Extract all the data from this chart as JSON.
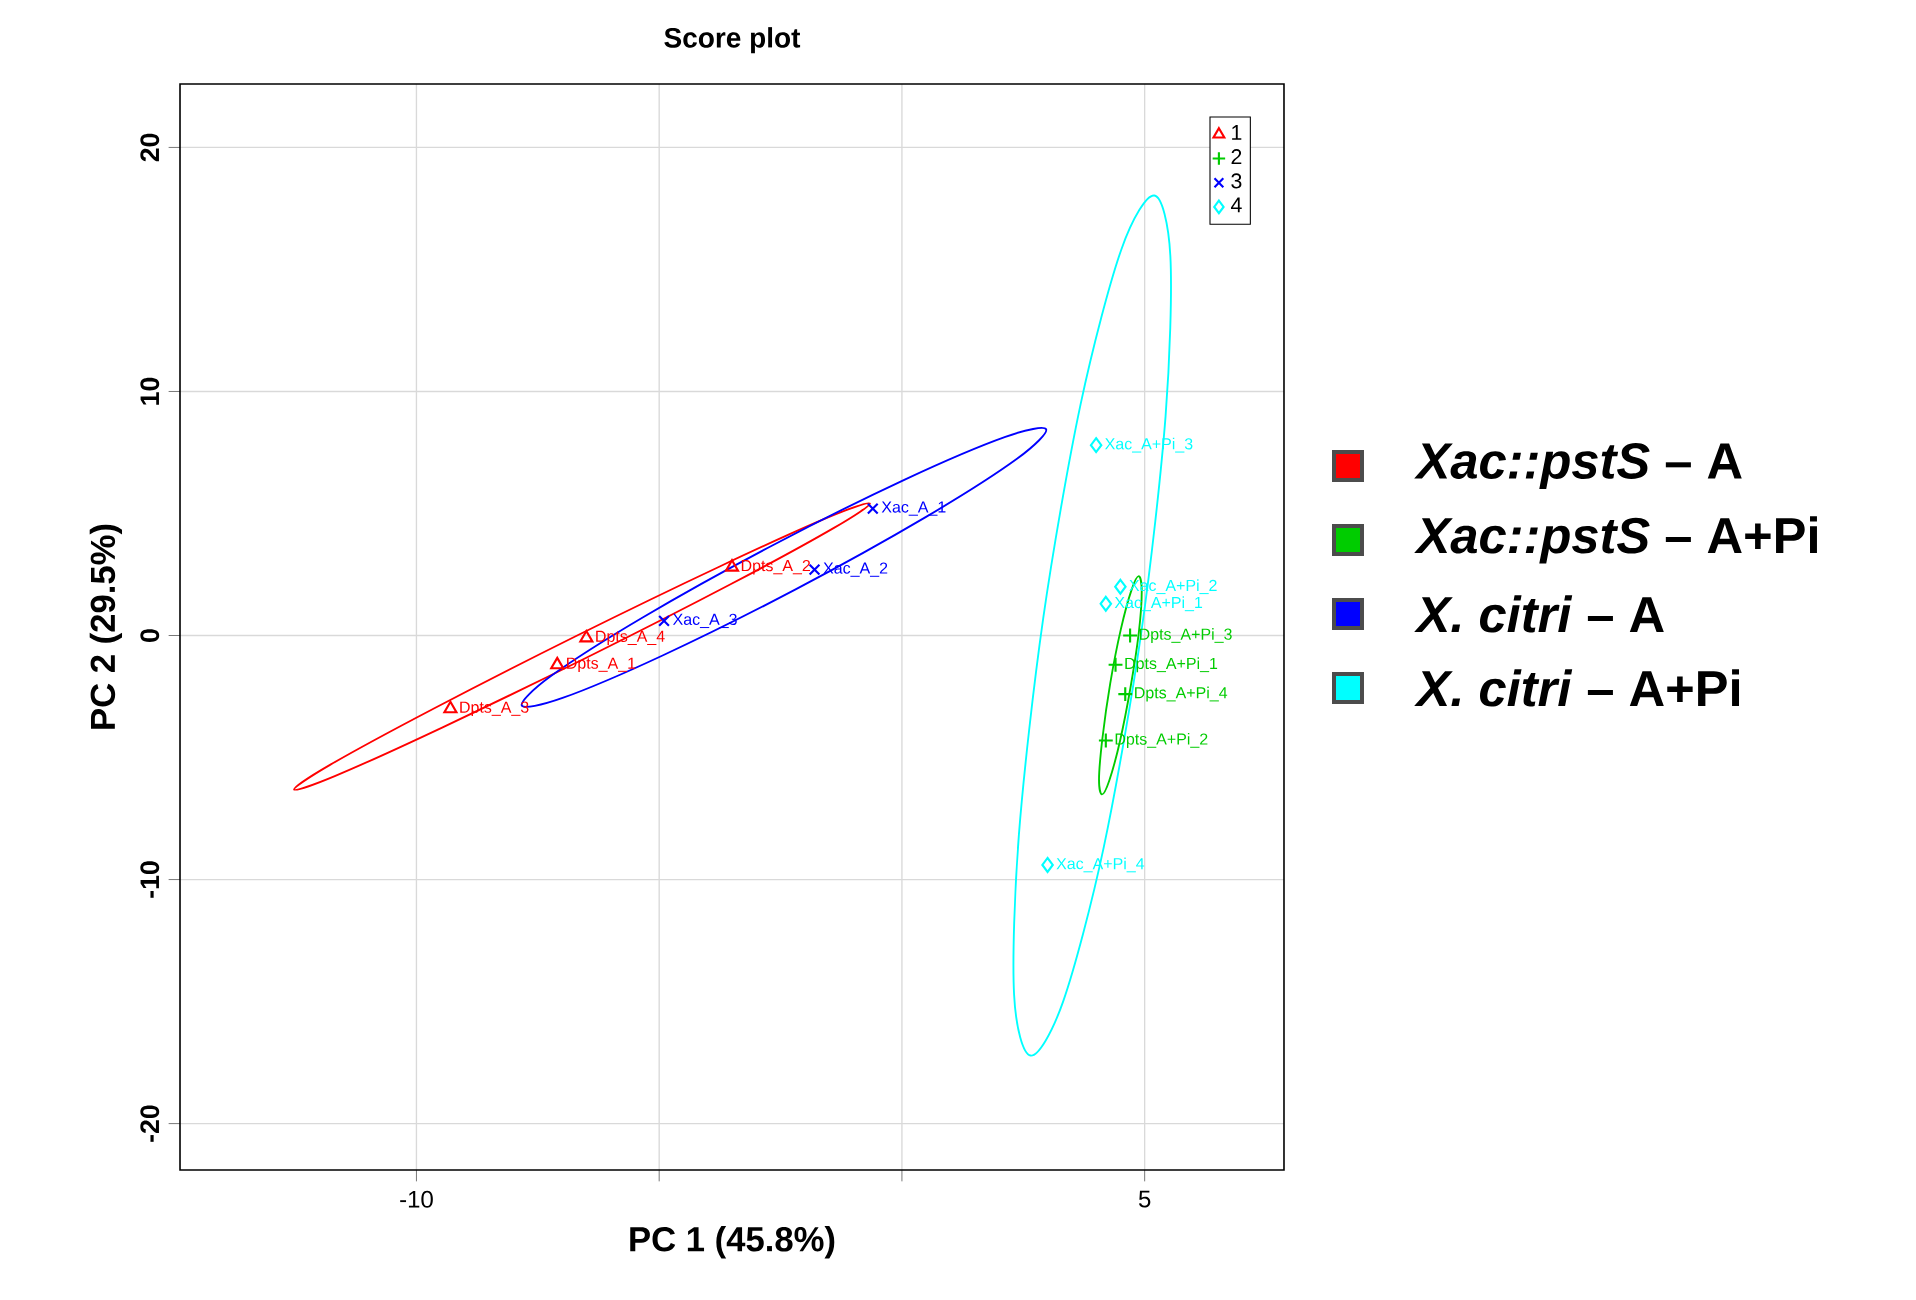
{
  "chart_data": {
    "type": "scatter",
    "title": "Score plot",
    "xlabel": "PC 1 (45.8%)",
    "ylabel": "PC 2 (29.5%)",
    "xlim": [
      -14.87,
      7.87
    ],
    "ylim": [
      -21.9,
      22.6
    ],
    "xticks": [
      -10,
      {
        "value": -5,
        "label": null
      },
      {
        "value": 0,
        "label": null
      },
      5
    ],
    "yticks": [
      -20,
      -10,
      0,
      10,
      20
    ],
    "grid": true,
    "legend": "top right",
    "series": [
      {
        "name": "1",
        "type": "scatter",
        "marker": "triangle",
        "color": "#ff0000",
        "x": [
          -9.3,
          -7.1,
          -6.5,
          -3.5
        ],
        "values": [
          -3.0,
          -1.2,
          -0.1,
          2.8
        ]
      },
      {
        "name": "2",
        "type": "scatter",
        "marker": "plus",
        "color": "#00cc00",
        "x": [
          4.4,
          4.2,
          4.7,
          4.6
        ],
        "values": [
          -1.2,
          -4.3,
          0.0,
          -2.4
        ]
      },
      {
        "name": "3",
        "type": "scatter",
        "marker": "cross",
        "color": "#0000ff",
        "x": [
          -0.6,
          -1.8,
          -4.9
        ],
        "values": [
          5.2,
          2.7,
          0.6
        ]
      },
      {
        "name": "4",
        "type": "scatter",
        "marker": "diamond",
        "color": "#00ffff",
        "x": [
          4.2,
          4.5,
          4.0,
          3.0
        ],
        "values": [
          1.3,
          2.0,
          7.8,
          -9.4
        ]
      }
    ],
    "annotations": [
      {
        "text": "Dpts_A_1",
        "x": -7.1,
        "y": -1.2
      },
      {
        "text": "Dpts_A_2",
        "x": -3.5,
        "y": 2.8
      },
      {
        "text": "Dpts_A_3",
        "x": -9.3,
        "y": -3.0
      },
      {
        "text": "Dpts_A_4",
        "x": -6.5,
        "y": -0.1
      },
      {
        "text": "Dpts_A+Pi_1",
        "x": 4.4,
        "y": -1.2
      },
      {
        "text": "Dpts_A+Pi_2",
        "x": 4.2,
        "y": -4.3
      },
      {
        "text": "Dpts_A+Pi_3",
        "x": 4.7,
        "y": 0.0
      },
      {
        "text": "Dpts_A+Pi_4",
        "x": 4.6,
        "y": -2.4
      },
      {
        "text": "Xac_A_1",
        "x": -0.6,
        "y": 5.2
      },
      {
        "text": "Xac_A_2",
        "x": -1.8,
        "y": 2.7
      },
      {
        "text": "Xac_A_3",
        "x": -4.9,
        "y": 0.6
      },
      {
        "text": "Xac_A+Pi_1",
        "x": 4.2,
        "y": 1.3
      },
      {
        "text": "Xac_A+Pi_2",
        "x": 4.5,
        "y": 2.0
      },
      {
        "text": "Xac_A+Pi_3",
        "x": 4.0,
        "y": 7.8
      },
      {
        "text": "Xac_A+Pi_4",
        "x": 3.0,
        "y": -9.4
      },
      "*Xac::pstS* – A",
      "*Xac::pstS* – A+Pi",
      "*X. citri* – A",
      "*X. citri* – A+Pi"
    ]
  }
}
